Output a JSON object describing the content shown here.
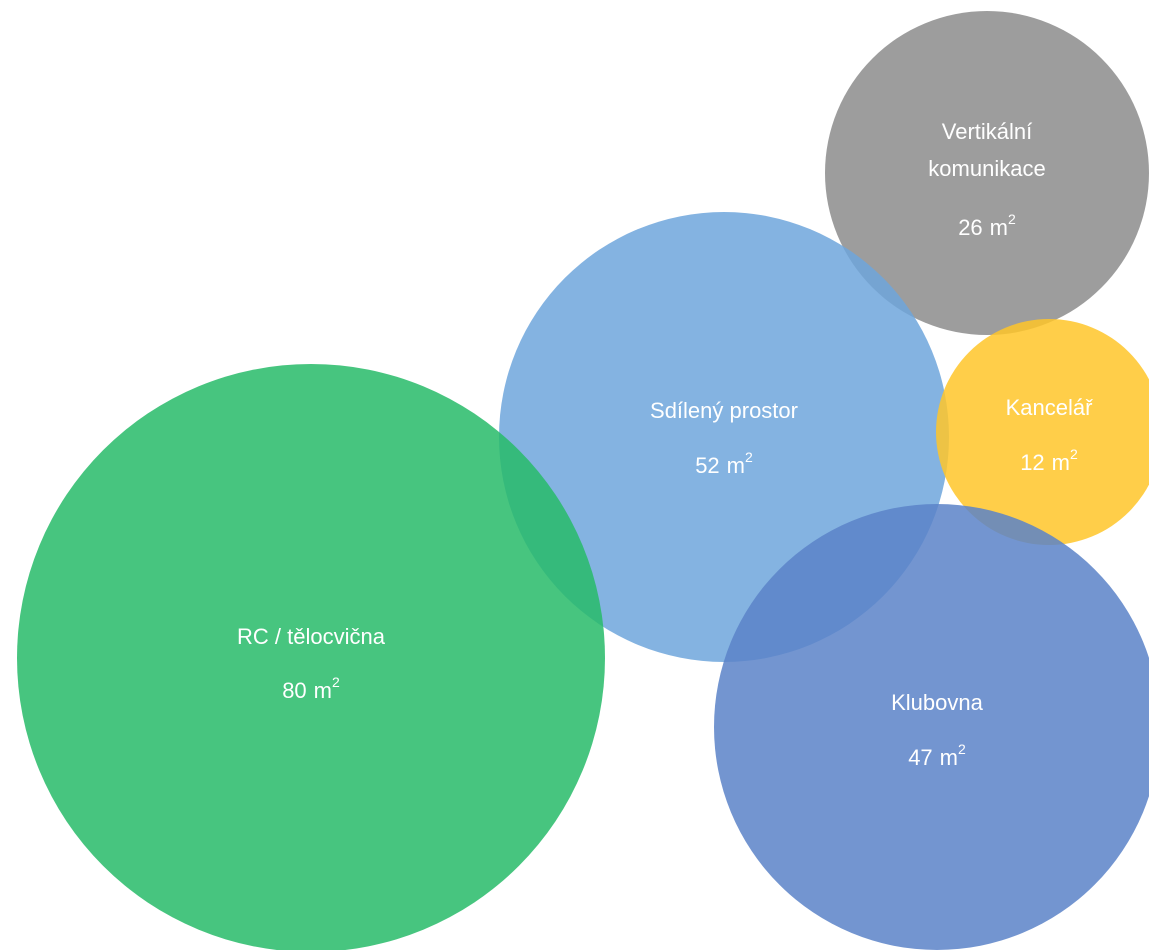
{
  "bubbles": [
    {
      "id": "vertikalni-komunikace",
      "name_lines": [
        "Vertikální",
        "komunikace"
      ],
      "value": "26",
      "unit_base": "m",
      "unit_exp": "2",
      "color": "#8c8c8c"
    },
    {
      "id": "sdileny-prostor",
      "name_lines": [
        "Sdílený prostor"
      ],
      "value": "52",
      "unit_base": "m",
      "unit_exp": "2",
      "color": "#6fa6dc"
    },
    {
      "id": "kancelar",
      "name_lines": [
        "Kancelář"
      ],
      "value": "12",
      "unit_base": "m",
      "unit_exp": "2",
      "color": "#ffc629"
    },
    {
      "id": "rc-telocvicna",
      "name_lines": [
        "RC / tělocvična"
      ],
      "value": "80",
      "unit_base": "m",
      "unit_exp": "2",
      "color": "#27bb69"
    },
    {
      "id": "klubovna",
      "name_lines": [
        "Klubovna"
      ],
      "value": "47",
      "unit_base": "m",
      "unit_exp": "2",
      "color": "#5a83c8"
    }
  ]
}
